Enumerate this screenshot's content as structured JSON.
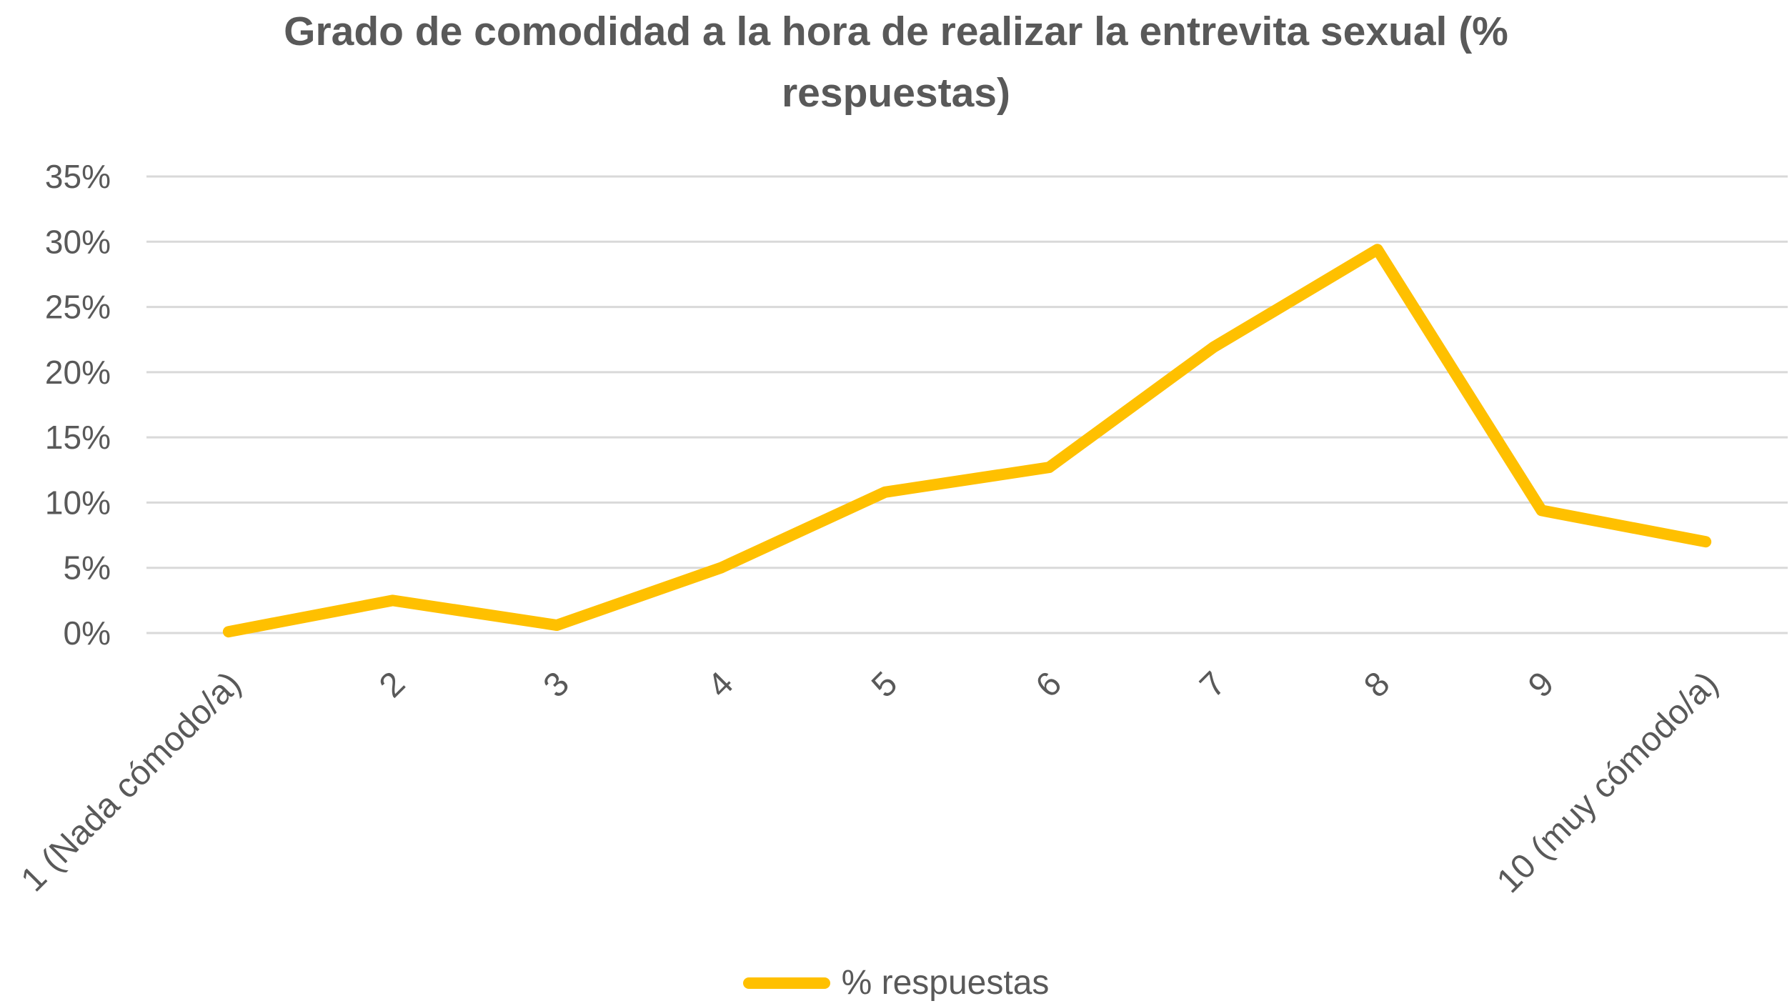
{
  "page": {
    "background": "#FFFFFF"
  },
  "chart_data": {
    "type": "line",
    "title": "Grado de comodidad a la hora de realizar la entrevita sexual (% respuestas)",
    "categories": [
      "1 (Nada cómodo/a)",
      "2",
      "3",
      "4",
      "5",
      "6",
      "7",
      "8",
      "9",
      "10 (muy cómodo/a)"
    ],
    "series": [
      {
        "name": "% respuestas",
        "color": "#FFC000",
        "values": [
          0.1,
          2.5,
          0.6,
          5.0,
          10.8,
          12.7,
          21.9,
          29.4,
          9.4,
          7.0
        ]
      }
    ],
    "xlabel": "",
    "ylabel": "",
    "ylim": [
      0,
      35
    ],
    "yticks": [
      0,
      5,
      10,
      15,
      20,
      25,
      30,
      35
    ],
    "ytick_labels": [
      "0%",
      "5%",
      "10%",
      "15%",
      "20%",
      "25%",
      "30%",
      "35%"
    ],
    "grid": true,
    "gridline_color": "#D9D9D9",
    "text_color": "#595959",
    "legend": {
      "label": "% respuestas",
      "position": "bottom-center"
    }
  }
}
